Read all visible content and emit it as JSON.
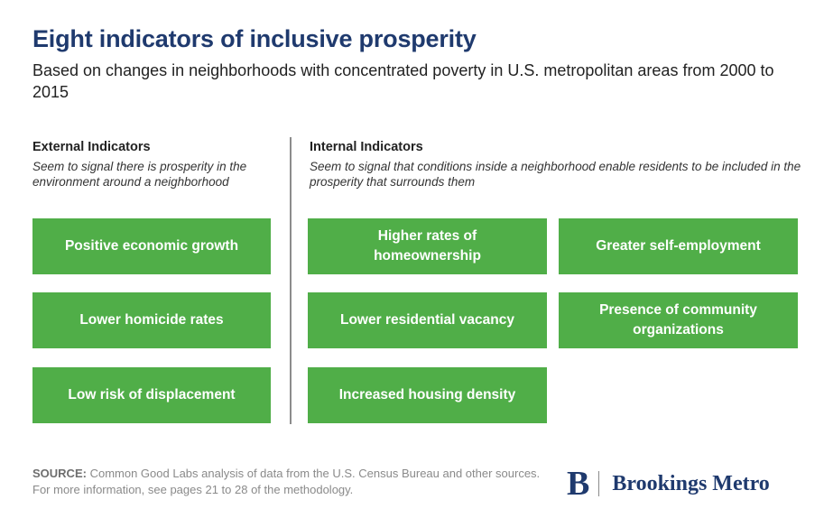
{
  "title": "Eight indicators of inclusive prosperity",
  "subtitle": "Based on changes in neighborhoods with concentrated poverty in U.S. metropolitan areas from 2000 to 2015",
  "external": {
    "heading": "External Indicators",
    "description": "Seem to signal there is prosperity in the environment around a neighborhood",
    "items": [
      "Positive economic growth",
      "Lower homicide rates",
      "Low risk of displacement"
    ]
  },
  "internal": {
    "heading": "Internal Indicators",
    "description": "Seem to signal that conditions inside a neighborhood enable residents to be included in the prosperity that surrounds them",
    "items": [
      "Higher rates of homeownership",
      "Greater self-employment",
      "Lower residential vacancy",
      "Presence of community organizations",
      "Increased housing density"
    ]
  },
  "source": {
    "label": "SOURCE:",
    "text": "Common Good Labs analysis of data from the U.S. Census Bureau and other sources. For more information, see pages 21 to 28 of the methodology."
  },
  "logo": {
    "mark": "B",
    "name": "Brookings Metro"
  },
  "colors": {
    "title": "#1f3a6e",
    "box": "#50ae48",
    "divider": "#8c8c8c"
  }
}
